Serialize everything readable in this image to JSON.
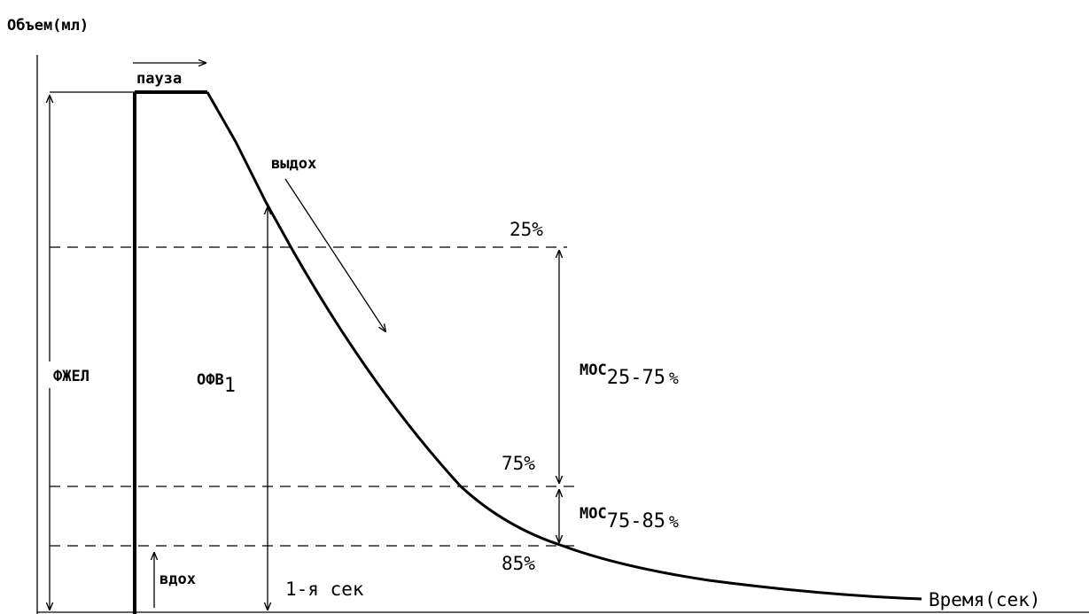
{
  "axes": {
    "y_label": "Объем(мл)",
    "x_label": "Время(сек)"
  },
  "labels": {
    "pause": "пауза",
    "exhale": "выдох",
    "inhale": "вдох",
    "fvc": "ФЖЕЛ",
    "fev_main": "ОФВ",
    "fev_sub": "1",
    "first_second": "1-я сек",
    "mef_main_1": "МОС",
    "mef_range_1": "25-75",
    "mef_pct_1": "%",
    "mef_main_2": "МОС",
    "mef_range_2": "75-85",
    "mef_pct_2": "%"
  },
  "levels": [
    {
      "id": "p25",
      "label": "25%"
    },
    {
      "id": "p75",
      "label": "75%"
    },
    {
      "id": "p85",
      "label": "85%"
    }
  ]
}
